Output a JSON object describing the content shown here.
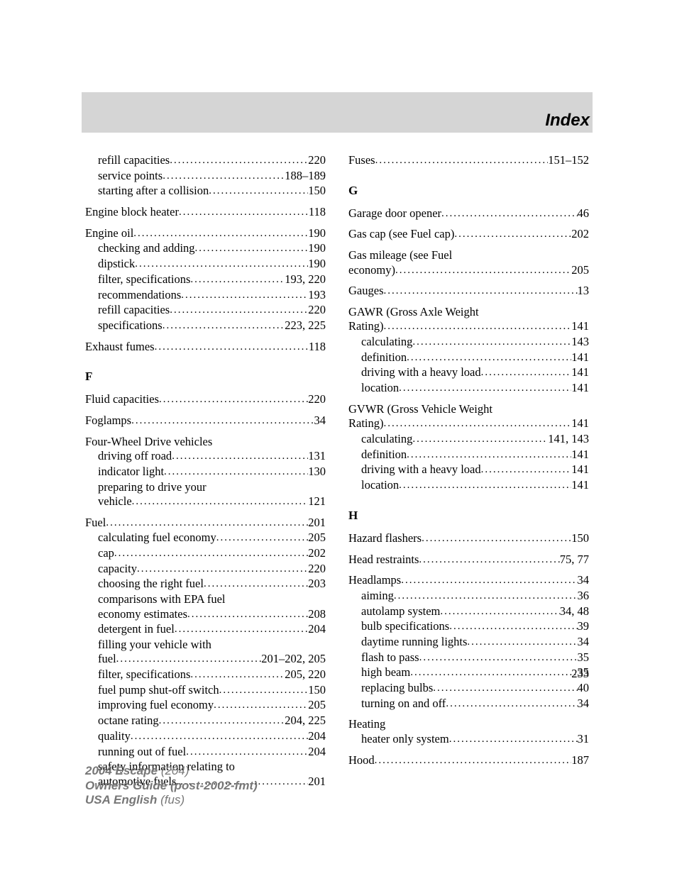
{
  "header": {
    "title": "Index"
  },
  "pageNumber": "233",
  "footer": {
    "line1a": "2004 Escape ",
    "line1b": "(204)",
    "line2": "Owners Guide (post-2002-fmt)",
    "line3a": "USA English ",
    "line3b": "(fus)"
  },
  "left": [
    {
      "t": "sub",
      "label": "refill capacities",
      "pg": "220"
    },
    {
      "t": "sub",
      "label": "service points",
      "pg": "188–189"
    },
    {
      "t": "sub",
      "label": "starting after a collision",
      "pg": "150"
    },
    {
      "t": "top",
      "gap": true,
      "label": "Engine block heater",
      "pg": "118"
    },
    {
      "t": "top",
      "gap": true,
      "label": "Engine oil",
      "pg": "190"
    },
    {
      "t": "sub",
      "label": "checking and adding",
      "pg": "190"
    },
    {
      "t": "sub",
      "label": "dipstick",
      "pg": "190"
    },
    {
      "t": "sub",
      "label": "filter, specifications",
      "pg": "193, 220"
    },
    {
      "t": "sub",
      "label": "recommendations",
      "pg": "193"
    },
    {
      "t": "sub",
      "label": "refill capacities",
      "pg": "220"
    },
    {
      "t": "sub",
      "label": "specifications",
      "pg": "223, 225"
    },
    {
      "t": "top",
      "gap": true,
      "label": "Exhaust fumes",
      "pg": "118"
    },
    {
      "t": "letter",
      "label": "F"
    },
    {
      "t": "top",
      "label": "Fluid capacities",
      "pg": "220"
    },
    {
      "t": "top",
      "gap": true,
      "label": "Foglamps",
      "pg": "34"
    },
    {
      "t": "topnoline",
      "gap": true,
      "label": "Four-Wheel Drive vehicles"
    },
    {
      "t": "sub",
      "label": "driving off road",
      "pg": "131"
    },
    {
      "t": "sub",
      "label": "indicator light",
      "pg": "130"
    },
    {
      "t": "subnoline",
      "label": "preparing to drive your"
    },
    {
      "t": "sub",
      "label": "vehicle",
      "pg": "121"
    },
    {
      "t": "top",
      "gap": true,
      "label": "Fuel",
      "pg": "201"
    },
    {
      "t": "sub",
      "label": "calculating fuel economy",
      "pg": "205"
    },
    {
      "t": "sub",
      "label": "cap",
      "pg": "202"
    },
    {
      "t": "sub",
      "label": "capacity",
      "pg": "220"
    },
    {
      "t": "sub",
      "label": "choosing the right fuel",
      "pg": "203"
    },
    {
      "t": "subnoline",
      "label": "comparisons with EPA fuel"
    },
    {
      "t": "sub",
      "label": "economy estimates",
      "pg": "208"
    },
    {
      "t": "sub",
      "label": "detergent in fuel",
      "pg": "204"
    },
    {
      "t": "subnoline",
      "label": "filling your vehicle with"
    },
    {
      "t": "sub",
      "label": "fuel",
      "pg": "201–202, 205"
    },
    {
      "t": "sub",
      "label": "filter, specifications",
      "pg": "205, 220"
    },
    {
      "t": "sub",
      "label": "fuel pump shut-off switch",
      "pg": "150"
    },
    {
      "t": "sub",
      "label": "improving fuel economy",
      "pg": "205"
    },
    {
      "t": "sub",
      "label": "octane rating",
      "pg": "204, 225"
    },
    {
      "t": "sub",
      "label": "quality",
      "pg": "204"
    },
    {
      "t": "sub",
      "label": "running out of fuel",
      "pg": "204"
    },
    {
      "t": "subnoline",
      "label": "safety information relating to"
    },
    {
      "t": "sub",
      "label": "automotive fuels",
      "pg": "201"
    }
  ],
  "right": [
    {
      "t": "top",
      "label": "Fuses",
      "pg": "151–152"
    },
    {
      "t": "letter",
      "label": "G"
    },
    {
      "t": "top",
      "label": "Garage door opener",
      "pg": "46"
    },
    {
      "t": "top",
      "gap": true,
      "label": "Gas cap (see Fuel cap)",
      "pg": "202"
    },
    {
      "t": "topnoline",
      "gap": true,
      "label": "Gas mileage (see Fuel"
    },
    {
      "t": "top",
      "label": "economy)",
      "pg": "205"
    },
    {
      "t": "top",
      "gap": true,
      "label": "Gauges",
      "pg": "13"
    },
    {
      "t": "topnoline",
      "gap": true,
      "label": "GAWR (Gross Axle Weight"
    },
    {
      "t": "top",
      "label": "Rating)",
      "pg": "141"
    },
    {
      "t": "sub",
      "label": "calculating",
      "pg": "143"
    },
    {
      "t": "sub",
      "label": "definition",
      "pg": "141"
    },
    {
      "t": "sub",
      "label": "driving with a heavy load",
      "pg": "141"
    },
    {
      "t": "sub",
      "label": "location",
      "pg": "141"
    },
    {
      "t": "topnoline",
      "gap": true,
      "label": "GVWR (Gross Vehicle Weight"
    },
    {
      "t": "top",
      "label": "Rating)",
      "pg": "141"
    },
    {
      "t": "sub",
      "label": "calculating",
      "pg": "141, 143"
    },
    {
      "t": "sub",
      "label": "definition",
      "pg": "141"
    },
    {
      "t": "sub",
      "label": "driving with a heavy load",
      "pg": "141"
    },
    {
      "t": "sub",
      "label": "location",
      "pg": "141"
    },
    {
      "t": "letter",
      "label": "H"
    },
    {
      "t": "top",
      "label": "Hazard flashers",
      "pg": "150"
    },
    {
      "t": "top",
      "gap": true,
      "label": "Head restraints",
      "pg": "75, 77"
    },
    {
      "t": "top",
      "gap": true,
      "label": "Headlamps",
      "pg": "34"
    },
    {
      "t": "sub",
      "label": "aiming",
      "pg": "36"
    },
    {
      "t": "sub",
      "label": "autolamp system",
      "pg": "34, 48"
    },
    {
      "t": "sub",
      "label": "bulb specifications",
      "pg": "39"
    },
    {
      "t": "sub",
      "label": "daytime running lights",
      "pg": "34"
    },
    {
      "t": "sub",
      "label": "flash to pass",
      "pg": "35"
    },
    {
      "t": "sub",
      "label": "high beam",
      "pg": "35"
    },
    {
      "t": "sub",
      "label": "replacing bulbs",
      "pg": "40"
    },
    {
      "t": "sub",
      "label": "turning on and off",
      "pg": "34"
    },
    {
      "t": "topnoline",
      "gap": true,
      "label": "Heating"
    },
    {
      "t": "sub",
      "label": "heater only system",
      "pg": "31"
    },
    {
      "t": "top",
      "gap": true,
      "label": "Hood",
      "pg": "187"
    }
  ]
}
